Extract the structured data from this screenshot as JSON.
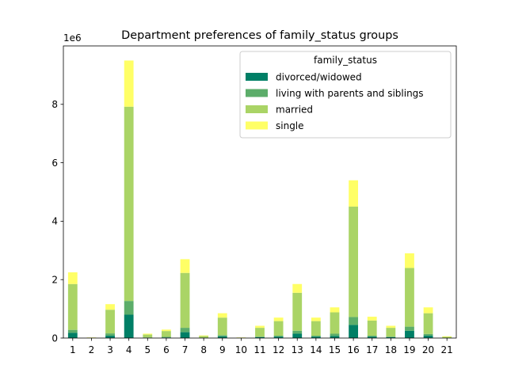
{
  "chart_data": {
    "type": "bar",
    "stacked": true,
    "title": "Department preferences of family_status groups",
    "xlabel": "",
    "ylabel": "",
    "offset_label": "1e6",
    "categories": [
      "1",
      "2",
      "3",
      "4",
      "5",
      "6",
      "7",
      "8",
      "9",
      "10",
      "11",
      "12",
      "13",
      "14",
      "15",
      "16",
      "17",
      "18",
      "19",
      "20",
      "21"
    ],
    "yticks": [
      0,
      2,
      4,
      6,
      8
    ],
    "ylim": [
      0,
      10
    ],
    "grid": false,
    "legend_title": "family_status",
    "legend_position": "upper-right",
    "series": [
      {
        "name": "divorced/widowed",
        "color": "#007f66",
        "values": [
          0.18,
          0.0,
          0.08,
          0.8,
          0.01,
          0.02,
          0.2,
          0.01,
          0.06,
          0.0,
          0.03,
          0.05,
          0.15,
          0.05,
          0.07,
          0.45,
          0.05,
          0.03,
          0.25,
          0.08,
          0.0
        ]
      },
      {
        "name": "living with parents and siblings",
        "color": "#5cad6a",
        "values": [
          0.1,
          0.0,
          0.08,
          0.47,
          0.01,
          0.02,
          0.15,
          0.0,
          0.04,
          0.0,
          0.02,
          0.03,
          0.1,
          0.03,
          0.08,
          0.27,
          0.03,
          0.02,
          0.14,
          0.06,
          0.0
        ]
      },
      {
        "name": "married",
        "color": "#aad466",
        "values": [
          1.57,
          0.01,
          0.81,
          6.65,
          0.1,
          0.2,
          1.88,
          0.06,
          0.6,
          0.01,
          0.3,
          0.5,
          1.3,
          0.5,
          0.73,
          3.78,
          0.52,
          0.3,
          2.01,
          0.71,
          0.04
        ]
      },
      {
        "name": "single",
        "color": "#ffff66",
        "values": [
          0.4,
          0.01,
          0.19,
          1.58,
          0.03,
          0.05,
          0.47,
          0.02,
          0.15,
          0.01,
          0.07,
          0.12,
          0.3,
          0.12,
          0.17,
          0.9,
          0.13,
          0.07,
          0.5,
          0.2,
          0.02
        ]
      }
    ]
  }
}
